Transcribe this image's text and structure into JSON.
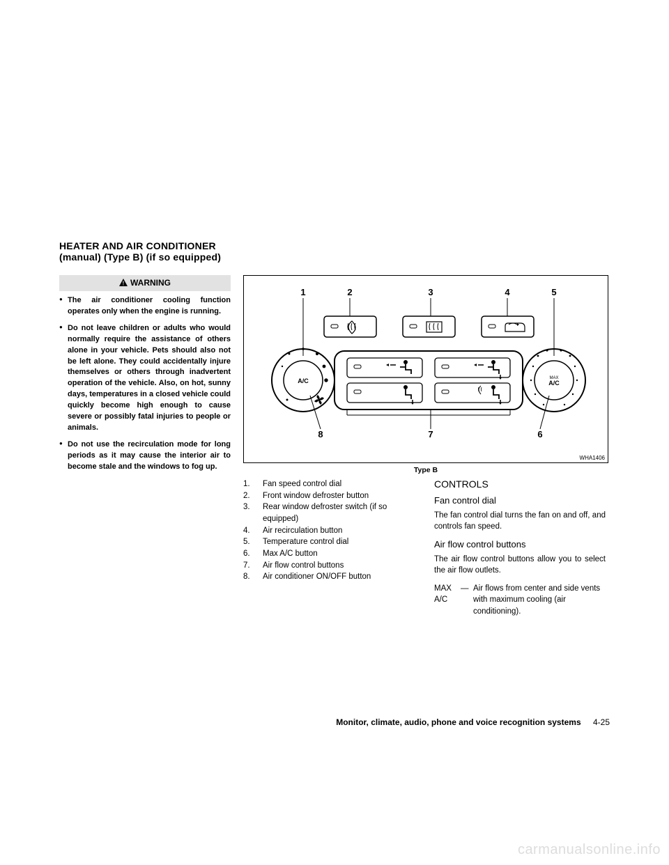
{
  "section": {
    "title_line1": "HEATER AND AIR CONDITIONER",
    "title_line2": "(manual) (Type B) (if so equipped)"
  },
  "warning": {
    "label": "WARNING",
    "bullets": [
      "The air conditioner cooling function operates only when the engine is running.",
      "Do not leave children or adults who would normally require the assistance of others alone in your vehicle. Pets should also not be left alone. They could accidentally injure themselves or others through inadvertent operation of the vehicle. Also, on hot, sunny days, temperatures in a closed vehicle could quickly become high enough to cause severe or possibly fatal injuries to people or animals.",
      "Do not use the recirculation mode for long periods as it may cause the interior air to become stale and the windows to fog up."
    ]
  },
  "diagram": {
    "code": "WHA1406",
    "caption": "Type B",
    "callouts": [
      "1",
      "2",
      "3",
      "4",
      "5",
      "6",
      "7",
      "8"
    ],
    "left_dial_label": "A/C",
    "right_dial_label_top": "MAX",
    "right_dial_label_bottom": "A/C"
  },
  "legend": [
    {
      "n": "1.",
      "t": "Fan speed control dial"
    },
    {
      "n": "2.",
      "t": "Front window defroster button"
    },
    {
      "n": "3.",
      "t": "Rear window defroster switch (if so equipped)"
    },
    {
      "n": "4.",
      "t": "Air recirculation button"
    },
    {
      "n": "5.",
      "t": "Temperature control dial"
    },
    {
      "n": "6.",
      "t": "Max A/C button"
    },
    {
      "n": "7.",
      "t": "Air flow control buttons"
    },
    {
      "n": "8.",
      "t": "Air conditioner ON/OFF button"
    }
  ],
  "controls": {
    "heading": "CONTROLS",
    "fan_heading": "Fan control dial",
    "fan_text": "The fan control dial turns the fan on and off, and controls fan speed.",
    "flow_heading": "Air flow control buttons",
    "flow_text": "The air flow control buttons allow you to select the air flow outlets.",
    "max_term": "MAX A/C",
    "max_dash": "—",
    "max_desc": "Air flows from center and side vents with maximum cooling (air conditioning)."
  },
  "footer": {
    "title": "Monitor, climate, audio, phone and voice recognition systems",
    "page": "4-25"
  },
  "watermark": "carmanualsonline.info",
  "style": {
    "bg": "#ffffff",
    "warning_bg": "#e2e2e2",
    "text": "#000000",
    "watermark_color": "#dddddd"
  }
}
